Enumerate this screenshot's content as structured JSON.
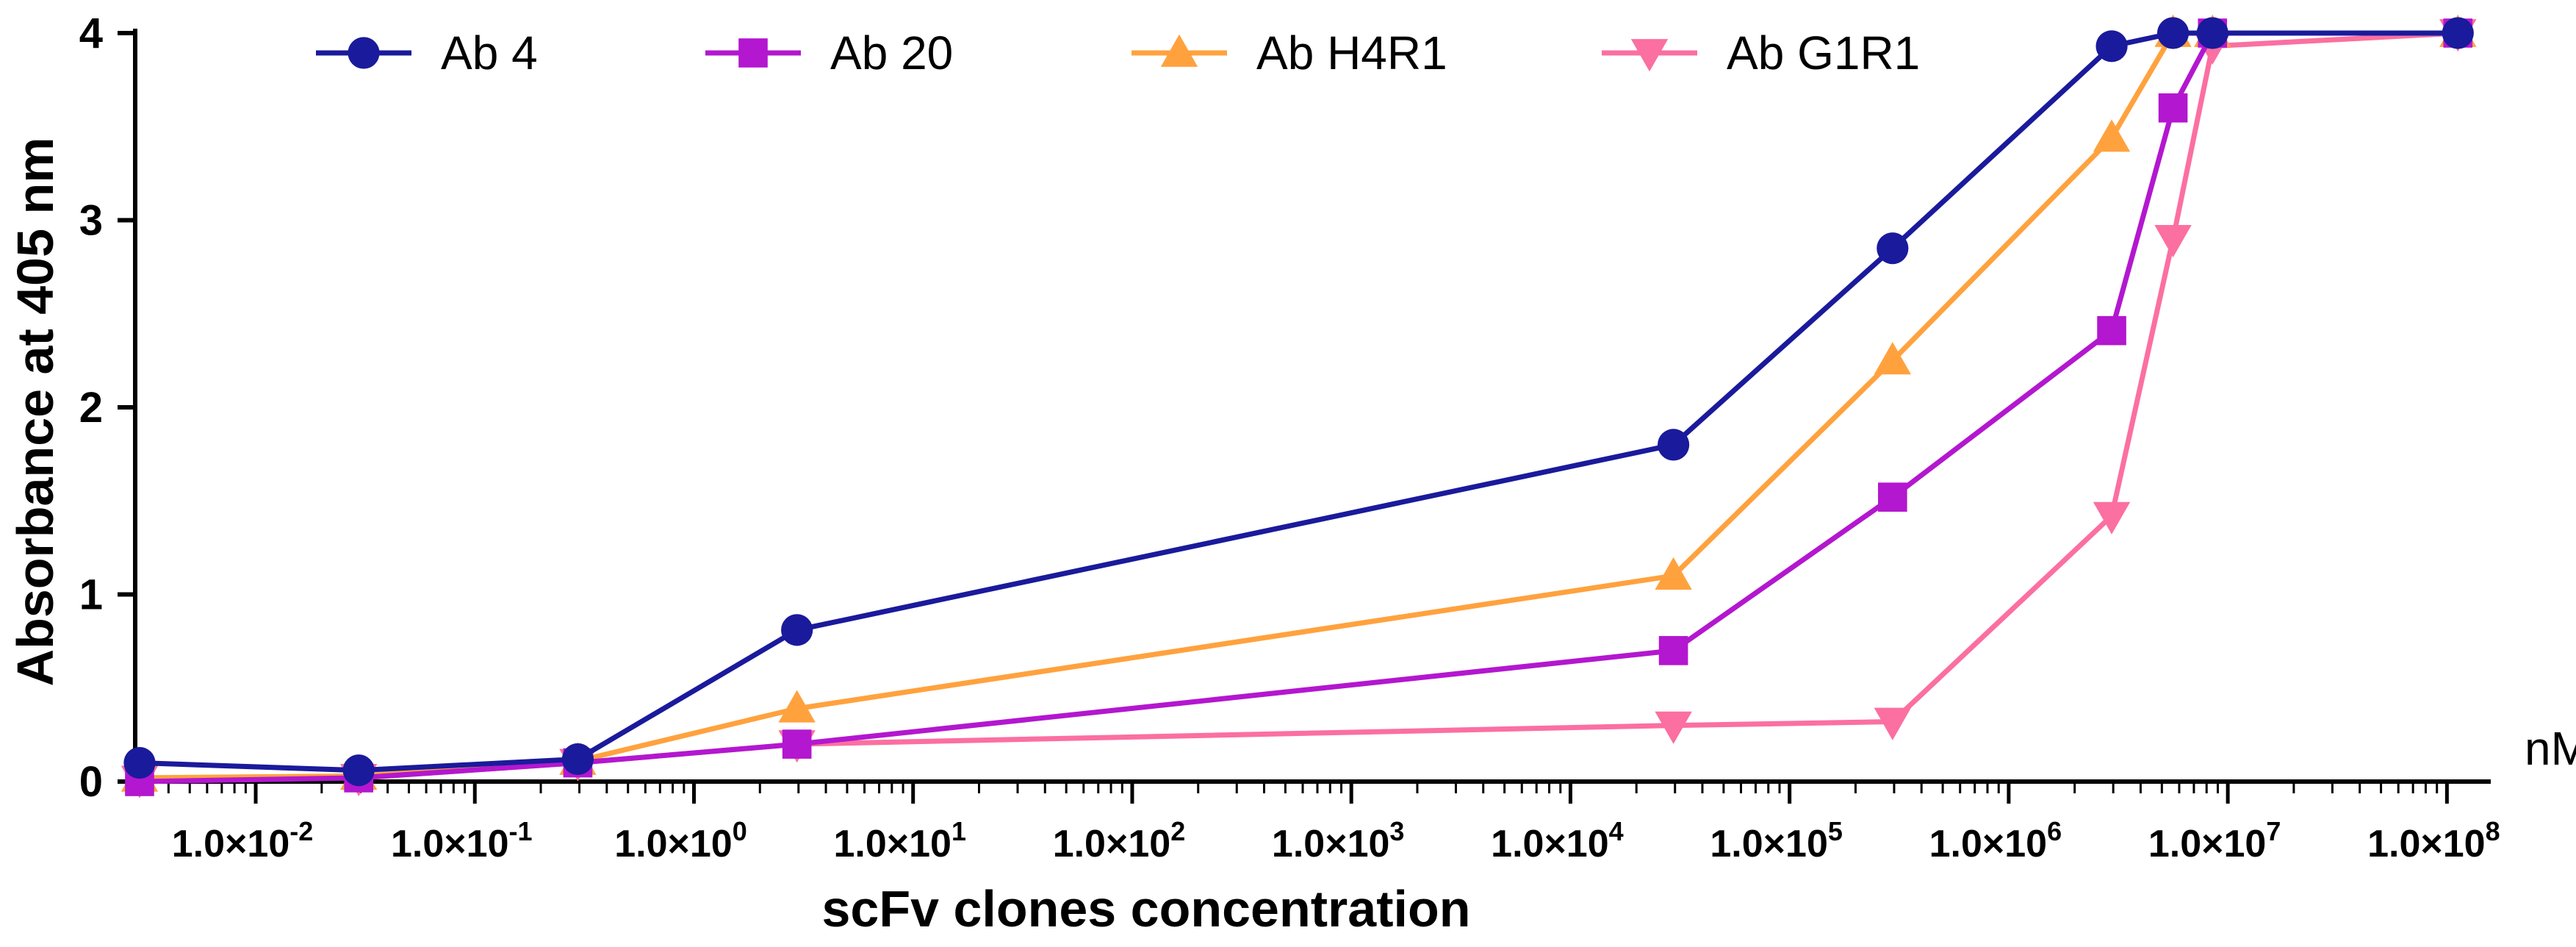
{
  "chart_data": {
    "type": "line",
    "title": "",
    "xlabel": "scFv clones concentration",
    "ylabel": "Absorbance at 405 nm",
    "x_unit": "nM",
    "x_scale": "log10",
    "xlim_log10": [
      -2.55,
      8.2
    ],
    "ylim": [
      0,
      4
    ],
    "yticks": [
      0,
      1,
      2,
      3,
      4
    ],
    "xtick_labels": [
      {
        "exp": -2,
        "mantissa": "1.0×10",
        "sup": "-2"
      },
      {
        "exp": -1,
        "mantissa": "1.0×10",
        "sup": "-1"
      },
      {
        "exp": 0,
        "mantissa": "1.0×10",
        "sup": "0"
      },
      {
        "exp": 1,
        "mantissa": "1.0×10",
        "sup": "1"
      },
      {
        "exp": 2,
        "mantissa": "1.0×10",
        "sup": "2"
      },
      {
        "exp": 3,
        "mantissa": "1.0×10",
        "sup": "3"
      },
      {
        "exp": 4,
        "mantissa": "1.0×10",
        "sup": "4"
      },
      {
        "exp": 5,
        "mantissa": "1.0×10",
        "sup": "5"
      },
      {
        "exp": 6,
        "mantissa": "1.0×10",
        "sup": "6"
      },
      {
        "exp": 7,
        "mantissa": "1.0×10",
        "sup": "7"
      },
      {
        "exp": 8,
        "mantissa": "1.0×10",
        "sup": "8"
      }
    ],
    "legend_position": "top",
    "series": [
      {
        "name": "Ab 4",
        "color": "#1a1a9c",
        "marker": "circle",
        "x_log10": [
          -2.53,
          -1.53,
          -0.53,
          0.47,
          4.47,
          5.47,
          6.47,
          6.75,
          6.93,
          8.05
        ],
        "values": [
          0.1,
          0.06,
          0.12,
          0.81,
          1.8,
          2.85,
          3.93,
          4.0,
          4.0,
          4.0
        ]
      },
      {
        "name": "Ab 20",
        "color": "#b317cf",
        "marker": "square",
        "x_log10": [
          -2.53,
          -1.53,
          -0.53,
          0.47,
          4.47,
          5.47,
          6.47,
          6.75,
          6.93,
          8.05
        ],
        "values": [
          0.0,
          0.02,
          0.1,
          0.2,
          0.7,
          1.52,
          2.41,
          3.6,
          4.0,
          4.0
        ]
      },
      {
        "name": "Ab H4R1",
        "color": "#ffa23e",
        "marker": "triangle-up",
        "x_log10": [
          -2.53,
          -1.53,
          -0.53,
          0.47,
          4.47,
          5.47,
          6.47,
          6.75,
          6.93,
          8.05
        ],
        "values": [
          0.02,
          0.03,
          0.11,
          0.39,
          1.1,
          2.25,
          3.44,
          4.0,
          4.0,
          4.0
        ]
      },
      {
        "name": "Ab G1R1",
        "color": "#fb6fa1",
        "marker": "triangle-down",
        "x_log10": [
          -2.53,
          -1.53,
          -0.53,
          0.47,
          4.47,
          5.47,
          6.47,
          6.75,
          6.93,
          8.05
        ],
        "values": [
          0.01,
          0.02,
          0.1,
          0.2,
          0.3,
          0.32,
          1.42,
          2.9,
          3.93,
          4.0
        ]
      }
    ]
  }
}
